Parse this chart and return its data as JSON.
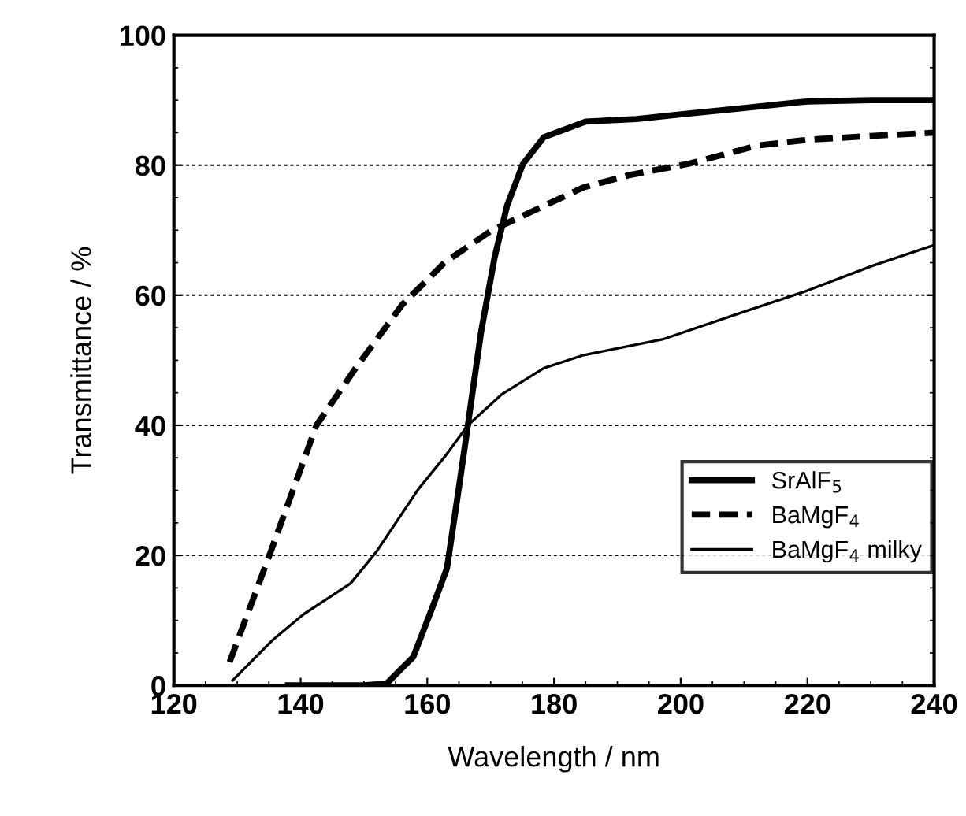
{
  "chart_data": {
    "type": "line",
    "xlabel": "Wavelength / nm",
    "ylabel": "Transmittance / %",
    "xlim": [
      120,
      240
    ],
    "ylim": [
      0,
      100
    ],
    "xticks": [
      120,
      140,
      160,
      180,
      200,
      220,
      240
    ],
    "yticks": [
      0,
      20,
      40,
      60,
      80,
      100
    ],
    "grid": "y",
    "legend": "lower right",
    "series": [
      {
        "name": "SrAlF$_{5}$",
        "color": "#000000",
        "line_style": "solid",
        "x": [
          138,
          145,
          150,
          153.6,
          157.8,
          161,
          163.1,
          165.2,
          166.4,
          168.5,
          170.6,
          172.6,
          175.1,
          178.4,
          185,
          193,
          201,
          210,
          220,
          230,
          240
        ],
        "values": [
          0,
          0,
          0,
          0.3,
          4.4,
          12.5,
          18,
          31.8,
          40,
          54.4,
          65.7,
          73.8,
          80.2,
          84.3,
          86.7,
          87.1,
          87.9,
          88.8,
          89.8,
          90,
          90
        ]
      },
      {
        "name": "BaMgF$_{4}$",
        "color": "#000000",
        "line_style": "dashed",
        "x": [
          128.8,
          135,
          142.5,
          148.7,
          156,
          162.7,
          170.2,
          176.8,
          184.7,
          192,
          201.2,
          212,
          220,
          230,
          240
        ],
        "values": [
          3.6,
          19.8,
          40,
          48.8,
          58.5,
          65,
          70,
          73,
          76.6,
          78.5,
          80.2,
          83,
          83.9,
          84.5,
          85
        ]
      },
      {
        "name": "BaMgF$_{4}$ milky",
        "color": "#000000",
        "line_style": "solid",
        "x": [
          129.3,
          135.5,
          140.4,
          147.9,
          152,
          158.6,
          162.7,
          166.4,
          171.8,
          178.4,
          184.7,
          197.1,
          209.5,
          219.4,
          230.2,
          240
        ],
        "values": [
          0.8,
          6.9,
          10.9,
          15.7,
          20.6,
          30.2,
          35.1,
          40,
          44.8,
          48.8,
          50.8,
          53.2,
          57.3,
          60.5,
          64.5,
          67.7
        ]
      }
    ]
  }
}
